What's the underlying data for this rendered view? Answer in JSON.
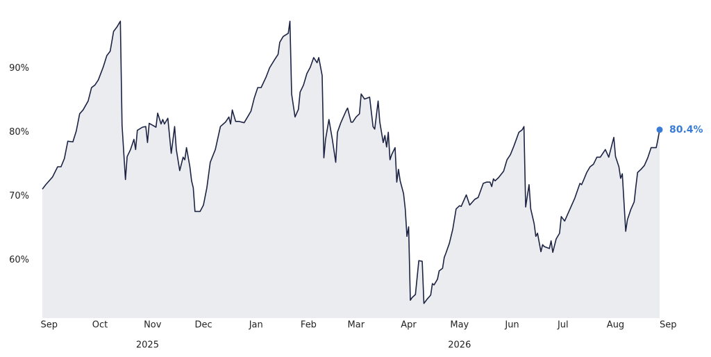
{
  "chart_data": {
    "type": "area",
    "x": [
      -4,
      -2,
      0,
      2,
      5,
      7,
      9,
      11,
      14,
      16,
      18,
      20,
      23,
      25,
      27,
      29,
      32,
      34,
      36,
      38,
      40,
      42,
      43,
      45,
      46,
      48,
      50,
      51,
      52,
      55,
      57,
      58,
      59,
      61,
      63,
      64,
      66,
      67,
      68,
      70,
      72,
      74,
      75,
      77,
      79,
      80,
      81,
      83,
      84,
      85,
      86,
      89,
      91,
      93,
      95,
      98,
      101,
      104,
      106,
      107,
      108,
      110,
      112,
      115,
      117,
      119,
      121,
      123,
      125,
      128,
      130,
      133,
      135,
      136,
      138,
      141,
      142,
      143,
      145,
      147,
      148,
      150,
      152,
      154,
      156,
      158,
      159,
      161,
      162,
      163,
      165,
      167,
      169,
      170,
      172,
      175,
      176,
      178,
      179,
      181,
      183,
      184,
      186,
      189,
      191,
      192,
      194,
      195,
      197,
      198,
      199,
      200,
      201,
      202,
      204,
      205,
      206,
      207,
      209,
      210,
      211,
      212,
      213,
      214,
      216,
      218,
      220,
      221,
      223,
      225,
      226,
      227,
      229,
      230,
      232,
      233,
      234,
      236,
      238,
      240,
      242,
      243,
      246,
      248,
      251,
      253,
      256,
      258,
      260,
      261,
      262,
      263,
      265,
      268,
      270,
      272,
      274,
      277,
      279,
      280,
      281,
      283,
      284,
      286,
      287,
      288,
      290,
      291,
      292,
      293,
      295,
      296,
      297,
      299,
      301,
      302,
      304,
      306,
      308,
      310,
      313,
      314,
      315,
      317,
      319,
      321,
      323,
      325,
      326,
      328,
      330,
      332,
      333,
      334,
      336,
      337,
      338,
      340,
      341,
      343,
      345,
      346,
      347,
      349,
      351,
      353,
      355,
      358,
      359,
      360
    ],
    "values": [
      71.1,
      71.8,
      72.4,
      73.0,
      74.6,
      74.6,
      75.9,
      78.6,
      78.5,
      80.2,
      82.9,
      83.5,
      84.9,
      87.0,
      87.4,
      88.2,
      90.3,
      92.0,
      92.7,
      95.8,
      96.5,
      97.4,
      81.1,
      72.6,
      76.2,
      77.3,
      78.9,
      77.3,
      80.3,
      80.8,
      80.9,
      78.4,
      81.4,
      81.1,
      80.8,
      83.0,
      81.3,
      82.0,
      81.3,
      82.2,
      76.7,
      80.9,
      77.3,
      74.0,
      76.1,
      75.7,
      77.6,
      74.6,
      72.4,
      71.3,
      67.6,
      67.6,
      68.6,
      71.3,
      75.3,
      77.3,
      80.9,
      81.6,
      82.4,
      81.3,
      83.5,
      81.7,
      81.7,
      81.5,
      82.4,
      83.3,
      85.4,
      87.0,
      87.0,
      88.7,
      90.1,
      91.4,
      92.2,
      94.1,
      95.0,
      95.5,
      97.4,
      86.0,
      82.4,
      83.6,
      86.3,
      87.4,
      89.2,
      90.2,
      91.7,
      90.9,
      91.7,
      88.9,
      76.0,
      78.9,
      82.0,
      78.9,
      75.3,
      80.0,
      81.5,
      83.3,
      83.8,
      81.6,
      81.6,
      82.4,
      82.9,
      86.0,
      85.2,
      85.5,
      80.9,
      80.5,
      84.9,
      81.6,
      78.4,
      79.5,
      77.7,
      80.0,
      75.7,
      76.5,
      77.6,
      72.2,
      74.2,
      72.4,
      70.4,
      68.0,
      63.7,
      65.2,
      53.7,
      54.1,
      54.6,
      59.9,
      59.8,
      53.2,
      53.9,
      54.5,
      56.3,
      56.1,
      57.0,
      58.3,
      58.7,
      60.4,
      61.1,
      62.6,
      64.8,
      68.0,
      68.5,
      68.4,
      70.2,
      68.6,
      69.5,
      69.8,
      72.0,
      72.2,
      72.2,
      71.5,
      72.7,
      72.4,
      72.9,
      73.9,
      75.7,
      76.5,
      77.8,
      80.0,
      80.4,
      80.9,
      68.3,
      71.8,
      68.0,
      65.7,
      63.7,
      64.2,
      61.3,
      62.4,
      62.1,
      62.0,
      61.8,
      63.0,
      61.2,
      63.3,
      64.2,
      66.8,
      66.1,
      67.3,
      68.5,
      69.7,
      72.0,
      71.8,
      72.4,
      73.7,
      74.6,
      75.0,
      76.1,
      76.1,
      76.5,
      77.3,
      76.1,
      78.2,
      79.2,
      76.2,
      74.6,
      72.8,
      73.5,
      64.5,
      66.3,
      67.9,
      69.1,
      71.5,
      73.7,
      74.2,
      74.8,
      76.0,
      77.6,
      77.6,
      78.9,
      80.4
    ],
    "last_value_label": "80.4%",
    "color": "#1b2242",
    "fill_color": "#ebecf0",
    "marker_color": "#3a7bd5",
    "xlim": [
      -4,
      360
    ],
    "xticks": [
      {
        "value": 0,
        "label": "Sep"
      },
      {
        "value": 30,
        "label": "Oct"
      },
      {
        "value": 61,
        "label": "Nov"
      },
      {
        "value": 91,
        "label": "Dec"
      },
      {
        "value": 122,
        "label": "Jan"
      },
      {
        "value": 153,
        "label": "Feb"
      },
      {
        "value": 181,
        "label": "Mar"
      },
      {
        "value": 212,
        "label": "Apr"
      },
      {
        "value": 242,
        "label": "May"
      },
      {
        "value": 273,
        "label": "Jun"
      },
      {
        "value": 303,
        "label": "Jul"
      },
      {
        "value": 334,
        "label": "Aug"
      },
      {
        "value": 365,
        "label": "Sep"
      }
    ],
    "year_ticks": [
      {
        "value": 58,
        "label": "2025"
      },
      {
        "value": 242,
        "label": "2026"
      }
    ],
    "ylim": [
      50.9,
      98
    ],
    "yticks": [
      {
        "value": 60,
        "label": "60%"
      },
      {
        "value": 70,
        "label": "70%"
      },
      {
        "value": 80,
        "label": "80%"
      },
      {
        "value": 90,
        "label": "90%"
      }
    ]
  }
}
